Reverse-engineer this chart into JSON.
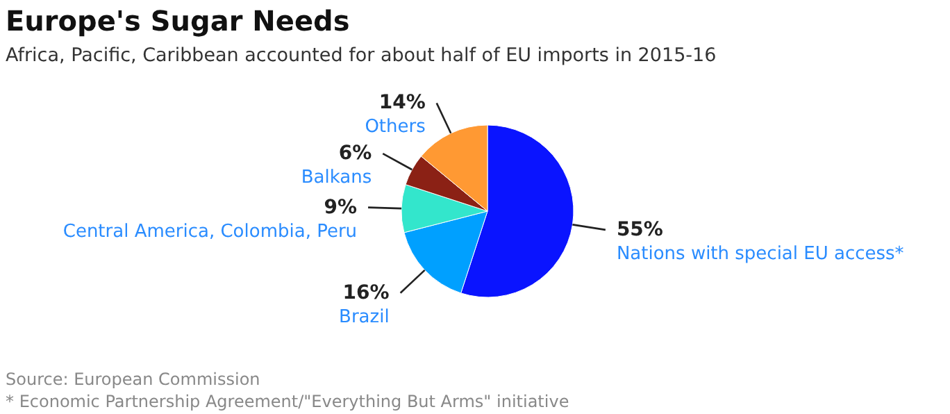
{
  "chart_data": {
    "type": "pie",
    "title": "Europe's Sugar Needs",
    "subtitle": "Africa, Pacific, Caribbean accounted for about half of EU imports in 2015-16",
    "categories": [
      "Nations with special EU access*",
      "Brazil",
      "Central America, Colombia, Peru",
      "Balkans",
      "Others"
    ],
    "values": [
      55,
      16,
      9,
      6,
      14
    ],
    "value_labels": [
      "55%",
      "16%",
      "9%",
      "6%",
      "14%"
    ],
    "colors": [
      "#0a14ff",
      "#00a0ff",
      "#33e6cc",
      "#8b2115",
      "#ff9933"
    ],
    "annotations": [
      "Source: European Commission",
      "* Economic Partnership Agreement/\"Everything But Arms\" initiative"
    ]
  }
}
